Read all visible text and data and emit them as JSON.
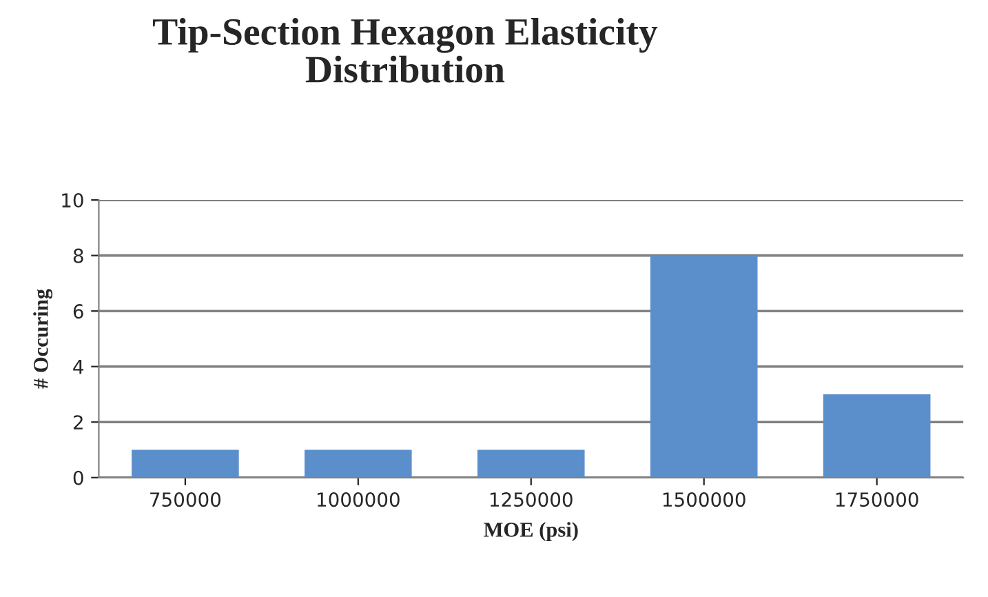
{
  "chart_data": {
    "type": "bar",
    "title": "Tip-Section Hexagon Elasticity\nDistribution",
    "xlabel": "MOE (psi)",
    "ylabel": "# Occuring",
    "categories": [
      "750000",
      "1000000",
      "1250000",
      "1500000",
      "1750000"
    ],
    "series": [
      {
        "color": "#5b8fcc",
        "values": [
          1,
          1,
          1,
          8,
          3
        ]
      }
    ],
    "ylim": [
      0,
      10
    ],
    "yticks": [
      0,
      2,
      4,
      6,
      8,
      10
    ],
    "grid": "y"
  }
}
